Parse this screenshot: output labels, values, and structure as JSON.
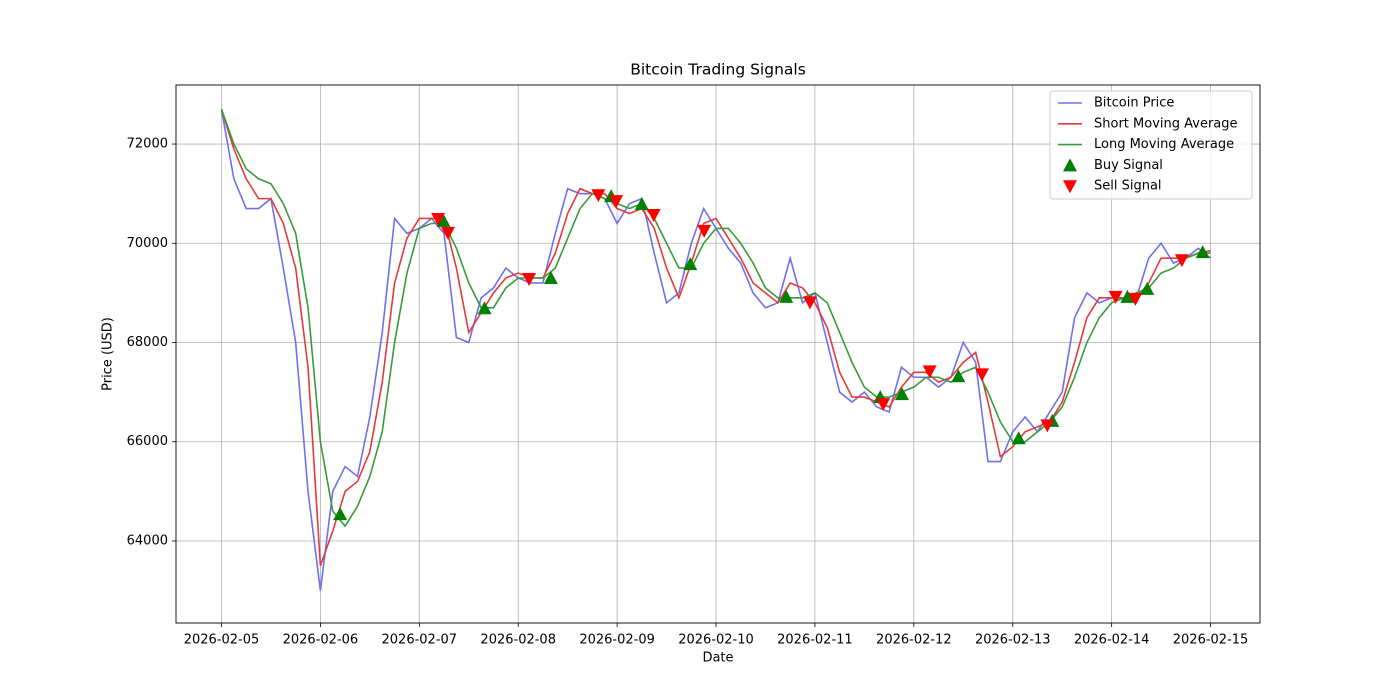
{
  "chart_data": {
    "type": "line",
    "title": "Bitcoin Trading Signals",
    "x_label": "Date",
    "y_label": "Price (USD)",
    "x": [
      0,
      0.125,
      0.25,
      0.375,
      0.5,
      0.625,
      0.75,
      0.875,
      1,
      1.125,
      1.25,
      1.375,
      1.5,
      1.625,
      1.75,
      1.875,
      2,
      2.125,
      2.25,
      2.375,
      2.5,
      2.625,
      2.75,
      2.875,
      3,
      3.125,
      3.25,
      3.375,
      3.5,
      3.625,
      3.75,
      3.875,
      4,
      4.125,
      4.25,
      4.375,
      4.5,
      4.625,
      4.75,
      4.875,
      5,
      5.125,
      5.25,
      5.375,
      5.5,
      5.625,
      5.75,
      5.875,
      6,
      6.125,
      6.25,
      6.375,
      6.5,
      6.625,
      6.75,
      6.875,
      7,
      7.125,
      7.25,
      7.375,
      7.5,
      7.625,
      7.75,
      7.875,
      8,
      8.125,
      8.25,
      8.375,
      8.5,
      8.625,
      8.75,
      8.875,
      9,
      9.125,
      9.25,
      9.375,
      9.5,
      9.625,
      9.75,
      9.875,
      10
    ],
    "series": [
      {
        "name": "Bitcoin Price",
        "color": "#7070ee",
        "values": [
          72700,
          71300,
          70700,
          70700,
          70900,
          69500,
          68000,
          65000,
          63000,
          65000,
          65500,
          65300,
          66500,
          68200,
          70500,
          70200,
          70300,
          70500,
          70200,
          68100,
          68000,
          68900,
          69100,
          69500,
          69300,
          69200,
          69200,
          70200,
          71100,
          71000,
          71000,
          70900,
          70400,
          70800,
          70900,
          69800,
          68800,
          69000,
          70000,
          70700,
          70300,
          69900,
          69600,
          69000,
          68700,
          68800,
          69700,
          68800,
          69000,
          68000,
          67000,
          66800,
          67000,
          66700,
          66600,
          67500,
          67300,
          67300,
          67100,
          67300,
          68000,
          67600,
          65600,
          65600,
          66200,
          66500,
          66200,
          66600,
          67000,
          68500,
          69000,
          68800,
          68900,
          68900,
          68900,
          69700,
          70000,
          69600,
          69700,
          69900,
          69700
        ]
      },
      {
        "name": "Short Moving Average",
        "color": "#e33b3b",
        "values": [
          72700,
          71900,
          71300,
          70900,
          70900,
          70400,
          69500,
          67500,
          63500,
          64200,
          65000,
          65200,
          65800,
          67200,
          69200,
          70100,
          70500,
          70500,
          70500,
          69500,
          68200,
          68600,
          69000,
          69300,
          69400,
          69300,
          69300,
          69800,
          70600,
          71100,
          71000,
          71000,
          70700,
          70600,
          70700,
          70300,
          69500,
          68900,
          69600,
          70400,
          70500,
          70100,
          69700,
          69200,
          69000,
          68800,
          69200,
          69100,
          68800,
          68300,
          67400,
          66900,
          66900,
          66800,
          66700,
          67100,
          67400,
          67400,
          67200,
          67300,
          67600,
          67800,
          66800,
          65700,
          65900,
          66200,
          66300,
          66400,
          66800,
          67600,
          68500,
          68900,
          68900,
          68900,
          68900,
          69200,
          69700,
          69700,
          69700,
          69800,
          69850
        ]
      },
      {
        "name": "Long Moving Average",
        "color": "#3a9a3a",
        "values": [
          72700,
          72000,
          71500,
          71300,
          71200,
          70800,
          70200,
          68700,
          66000,
          64600,
          64300,
          64700,
          65300,
          66200,
          68000,
          69400,
          70300,
          70400,
          70400,
          69900,
          69200,
          68700,
          68700,
          69100,
          69300,
          69300,
          69300,
          69500,
          70100,
          70700,
          71000,
          70900,
          70800,
          70700,
          70800,
          70500,
          70000,
          69500,
          69500,
          70000,
          70300,
          70300,
          70000,
          69600,
          69100,
          68900,
          68900,
          68900,
          69000,
          68800,
          68200,
          67600,
          67100,
          66900,
          66900,
          67000,
          67100,
          67300,
          67300,
          67200,
          67400,
          67500,
          67000,
          66400,
          66000,
          66000,
          66200,
          66400,
          66700,
          67300,
          68000,
          68500,
          68800,
          68900,
          69000,
          69100,
          69400,
          69500,
          69700,
          69800,
          69800
        ]
      },
      {
        "name": "Buy Signal",
        "color": "#008000",
        "marker": "triangle-up",
        "x": [
          1.2,
          2.245,
          2.66,
          3.33,
          3.94,
          4.25,
          4.74,
          5.71,
          6.66,
          6.88,
          7.45,
          8.06,
          8.4,
          9.16,
          9.36,
          9.92
        ],
        "values": [
          64540,
          70450,
          68690,
          69300,
          70950,
          70790,
          69580,
          68920,
          66900,
          66960,
          67320,
          66070,
          66420,
          68920,
          69080,
          69820
        ]
      },
      {
        "name": "Sell Signal",
        "color": "#ff0000",
        "marker": "triangle-down",
        "x": [
          2.19,
          2.29,
          3.11,
          3.81,
          3.99,
          4.37,
          4.88,
          5.95,
          6.69,
          7.16,
          7.69,
          8.35,
          9.04,
          9.24,
          9.71
        ],
        "values": [
          70490,
          70210,
          69280,
          70970,
          70850,
          70570,
          70250,
          68810,
          66760,
          67420,
          67360,
          66330,
          68920,
          68880,
          69660
        ]
      }
    ],
    "xlim": [
      -0.46,
      10.5
    ],
    "xticks": [
      {
        "value": 0,
        "label": "2026-02-05"
      },
      {
        "value": 1,
        "label": "2026-02-06"
      },
      {
        "value": 2,
        "label": "2026-02-07"
      },
      {
        "value": 3,
        "label": "2026-02-08"
      },
      {
        "value": 4,
        "label": "2026-02-09"
      },
      {
        "value": 5,
        "label": "2026-02-10"
      },
      {
        "value": 6,
        "label": "2026-02-11"
      },
      {
        "value": 7,
        "label": "2026-02-12"
      },
      {
        "value": 8,
        "label": "2026-02-13"
      },
      {
        "value": 9,
        "label": "2026-02-14"
      },
      {
        "value": 10,
        "label": "2026-02-15"
      }
    ],
    "ylim": [
      62347,
      73190
    ],
    "yticks": [
      64000,
      66000,
      68000,
      70000,
      72000
    ],
    "grid": true,
    "legend": "upper right"
  }
}
